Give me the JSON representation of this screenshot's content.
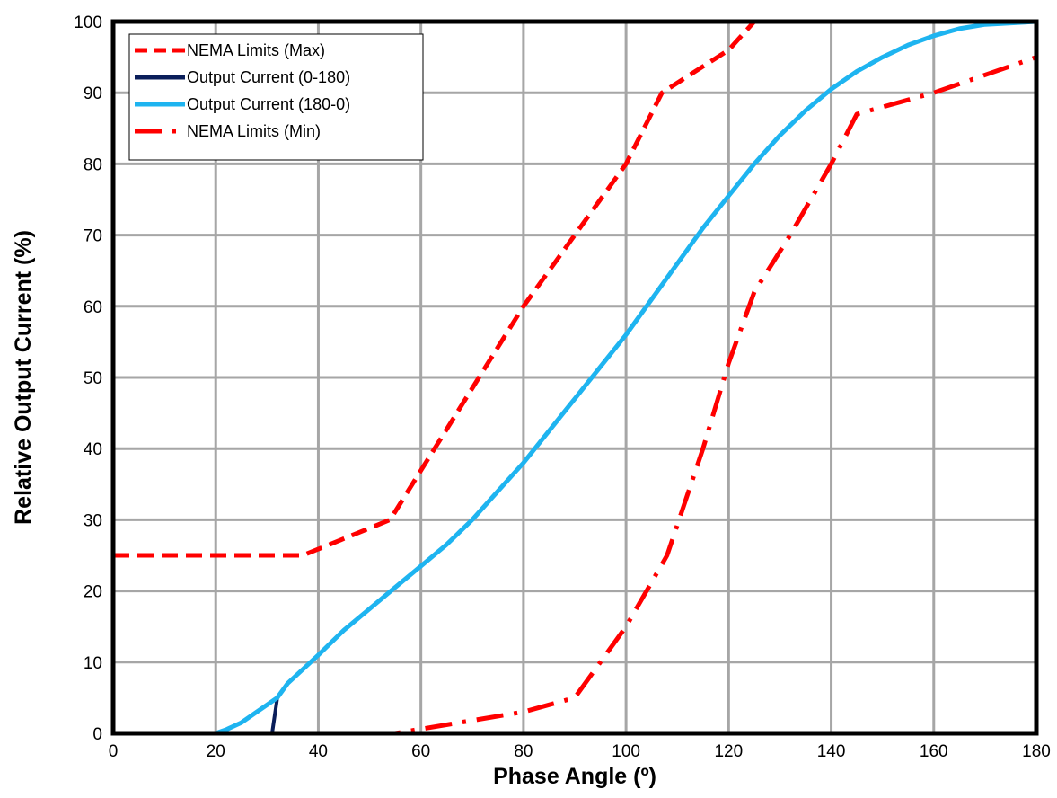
{
  "chart_data": {
    "type": "line",
    "title": "",
    "xlabel": "Phase Angle (º)",
    "ylabel": "Relative Output Current (%)",
    "xlim": [
      0,
      180
    ],
    "ylim": [
      0,
      100
    ],
    "xticks": [
      "0",
      "20",
      "40",
      "60",
      "80",
      "100",
      "120",
      "140",
      "160",
      "180"
    ],
    "yticks": [
      "0",
      "10",
      "20",
      "30",
      "40",
      "50",
      "60",
      "70",
      "80",
      "90",
      "100"
    ],
    "grid": true,
    "legend_position": "top-left",
    "series": [
      {
        "name": "NEMA Limits (Max)",
        "color": "#ff0000",
        "style": "dashed",
        "points": [
          [
            0,
            25
          ],
          [
            37,
            25
          ],
          [
            54,
            30
          ],
          [
            80,
            60
          ],
          [
            100,
            80
          ],
          [
            107,
            90
          ],
          [
            120,
            96
          ],
          [
            125,
            100
          ],
          [
            180,
            100
          ]
        ]
      },
      {
        "name": "Output Current (0-180)",
        "color": "#0a1e5a",
        "style": "solid",
        "points": [
          [
            0,
            0
          ],
          [
            31,
            0
          ],
          [
            32,
            5
          ],
          [
            34,
            7
          ],
          [
            40,
            11
          ],
          [
            45,
            14.5
          ],
          [
            50,
            17.5
          ],
          [
            55,
            20.5
          ],
          [
            60,
            23.5
          ],
          [
            65,
            26.5
          ],
          [
            70,
            30
          ],
          [
            75,
            34
          ],
          [
            80,
            38
          ],
          [
            85,
            42.5
          ],
          [
            90,
            47
          ],
          [
            95,
            51.5
          ],
          [
            100,
            56
          ],
          [
            105,
            61
          ],
          [
            110,
            66
          ],
          [
            115,
            71
          ],
          [
            120,
            75.5
          ],
          [
            125,
            80
          ],
          [
            130,
            84
          ],
          [
            135,
            87.5
          ],
          [
            140,
            90.5
          ],
          [
            145,
            93
          ],
          [
            150,
            95
          ],
          [
            155,
            96.7
          ],
          [
            160,
            98
          ],
          [
            165,
            99
          ],
          [
            170,
            99.6
          ],
          [
            180,
            100
          ]
        ]
      },
      {
        "name": "Output Current (180-0)",
        "color": "#1eb4f0",
        "style": "solid",
        "points": [
          [
            0,
            0
          ],
          [
            20,
            0
          ],
          [
            22,
            0.5
          ],
          [
            25,
            1.5
          ],
          [
            28,
            3
          ],
          [
            31,
            4.5
          ],
          [
            32,
            5
          ],
          [
            34,
            7
          ],
          [
            40,
            11
          ],
          [
            45,
            14.5
          ],
          [
            50,
            17.5
          ],
          [
            55,
            20.5
          ],
          [
            60,
            23.5
          ],
          [
            65,
            26.5
          ],
          [
            70,
            30
          ],
          [
            75,
            34
          ],
          [
            80,
            38
          ],
          [
            85,
            42.5
          ],
          [
            90,
            47
          ],
          [
            95,
            51.5
          ],
          [
            100,
            56
          ],
          [
            105,
            61
          ],
          [
            110,
            66
          ],
          [
            115,
            71
          ],
          [
            120,
            75.5
          ],
          [
            125,
            80
          ],
          [
            130,
            84
          ],
          [
            135,
            87.5
          ],
          [
            140,
            90.5
          ],
          [
            145,
            93
          ],
          [
            150,
            95
          ],
          [
            155,
            96.7
          ],
          [
            160,
            98
          ],
          [
            165,
            99
          ],
          [
            170,
            99.6
          ],
          [
            180,
            100
          ]
        ]
      },
      {
        "name": "NEMA Limits (Min)",
        "color": "#ff0000",
        "style": "dashdot",
        "points": [
          [
            0,
            0
          ],
          [
            55,
            0
          ],
          [
            80,
            3
          ],
          [
            90,
            5
          ],
          [
            100,
            15
          ],
          [
            108,
            25
          ],
          [
            115,
            40
          ],
          [
            120,
            52
          ],
          [
            125,
            62
          ],
          [
            132,
            70
          ],
          [
            140,
            80
          ],
          [
            145,
            87
          ],
          [
            160,
            90
          ],
          [
            180,
            95
          ]
        ]
      }
    ]
  }
}
